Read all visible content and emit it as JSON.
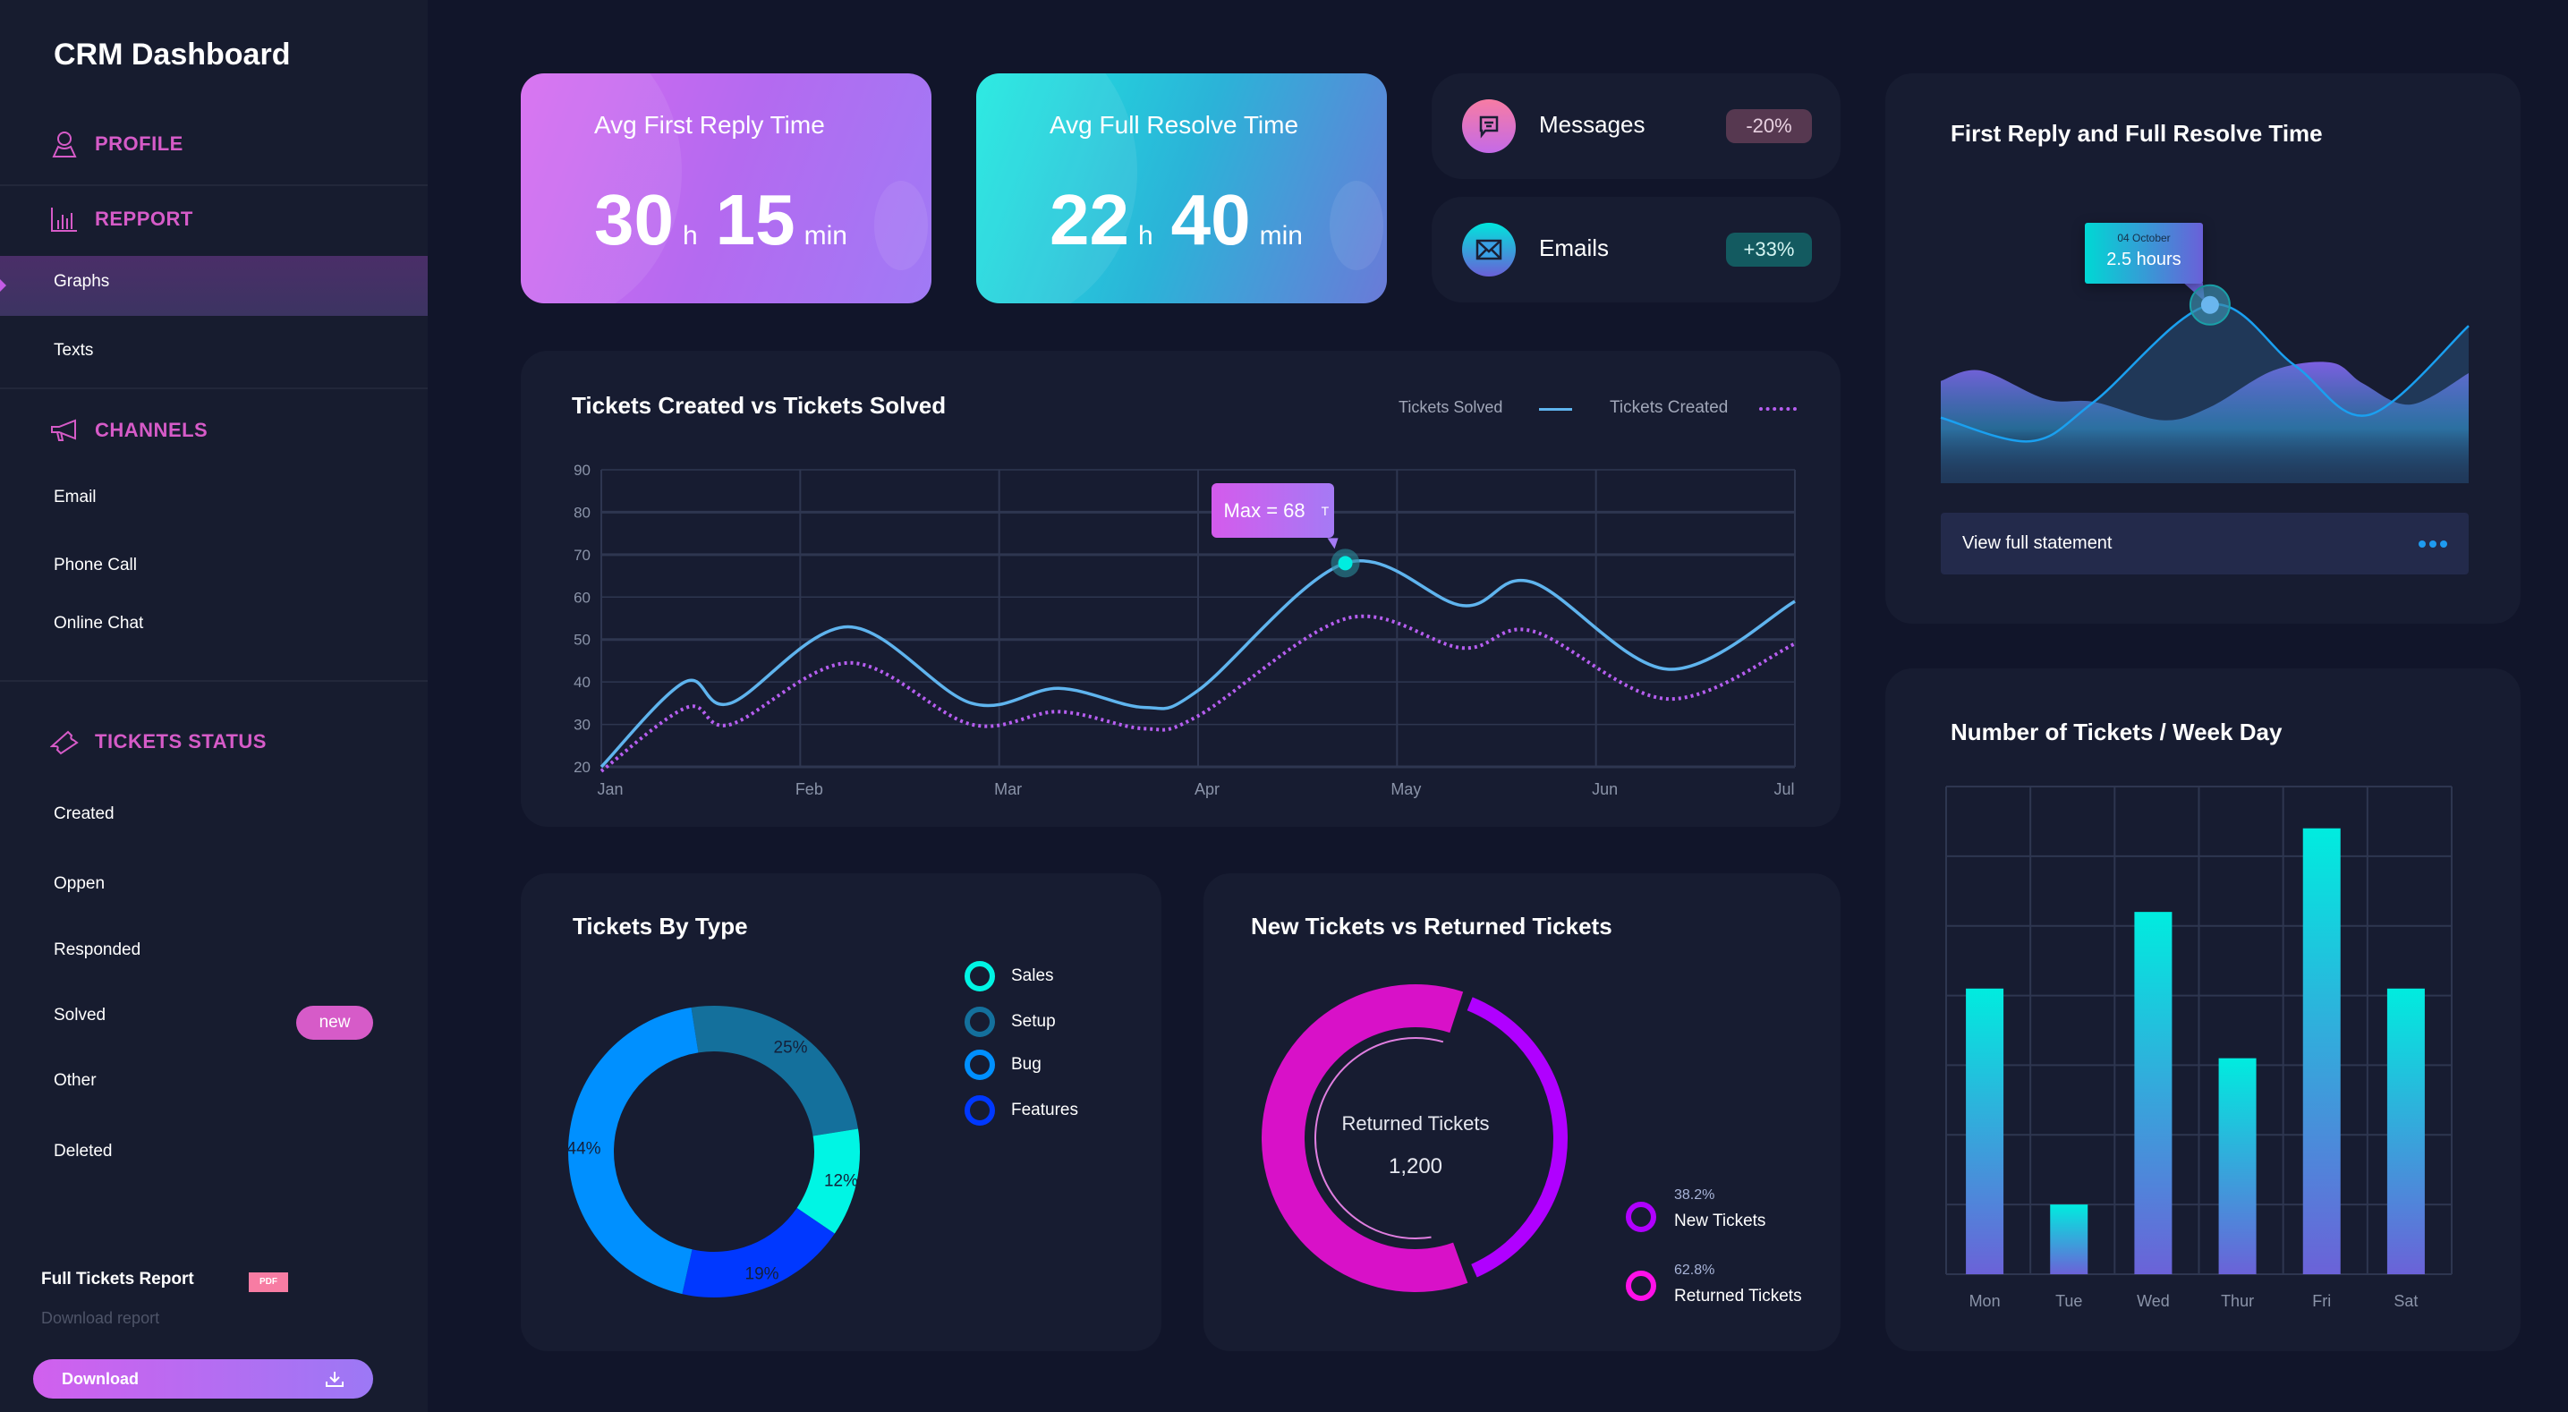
{
  "sidebar": {
    "title": "CRM Dashboard",
    "sections": {
      "profile": {
        "label": "PROFILE",
        "icon": "user-icon"
      },
      "report": {
        "label": "REPPORT",
        "icon": "bar-chart-icon",
        "items": [
          "Graphs",
          "Texts"
        ],
        "active": "Graphs"
      },
      "channels": {
        "label": "CHANNELS",
        "icon": "megaphone-icon",
        "items": [
          "Email",
          "Phone Call",
          "Online Chat"
        ]
      },
      "status": {
        "label": "TICKETS STATUS",
        "icon": "ticket-icon",
        "items": [
          "Created",
          "Oppen",
          "Responded",
          "Solved",
          "Other",
          "Deleted"
        ],
        "solved_badge": "new"
      }
    },
    "report_box": {
      "title": "Full Tickets Report",
      "badge": "PDF",
      "subtitle": "Download report",
      "button": "Download",
      "button_icon": "download-icon"
    }
  },
  "kpis": [
    {
      "title": "Avg First Reply Time",
      "hours": "30",
      "h_unit": "h",
      "minutes": "15",
      "m_unit": "min",
      "colors": [
        "#d66bf0",
        "#a07af5"
      ]
    },
    {
      "title": "Avg Full Resolve Time",
      "hours": "22",
      "h_unit": "h",
      "minutes": "40",
      "m_unit": "min",
      "colors": [
        "#1de9e0",
        "#6a7ad8"
      ]
    }
  ],
  "mini_stats": [
    {
      "label": "Messages",
      "change": "-20%",
      "icon": "message-icon"
    },
    {
      "label": "Emails",
      "change": "+33%",
      "icon": "envelope-icon"
    }
  ],
  "chart_data": [
    {
      "type": "line",
      "title": "Tickets Created vs Tickets Solved",
      "x_ticks": [
        "Jan",
        "Feb",
        "Mar",
        "Apr",
        "May",
        "Jun",
        "Jul"
      ],
      "y_ticks": [
        20,
        30,
        40,
        50,
        60,
        70,
        80,
        90
      ],
      "ylim": [
        20,
        90
      ],
      "grid": true,
      "legend": "top-right",
      "x_unit": "months from Jan",
      "series": [
        {
          "name": "Tickets Solved",
          "color": "#5fb4ee",
          "style": "solid",
          "points": [
            [
              0,
              20
            ],
            [
              0.42,
              40
            ],
            [
              0.65,
              35
            ],
            [
              1.24,
              53
            ],
            [
              1.86,
              35
            ],
            [
              2.3,
              38.5
            ],
            [
              2.73,
              34
            ],
            [
              3.0,
              38
            ],
            [
              3.74,
              68
            ],
            [
              4.33,
              58
            ],
            [
              4.68,
              63.5
            ],
            [
              5.36,
              43
            ],
            [
              6,
              59
            ]
          ]
        },
        {
          "name": "Tickets Created",
          "color": "#b65ef0",
          "style": "dotted",
          "points": [
            [
              0,
              19
            ],
            [
              0.43,
              34
            ],
            [
              0.65,
              30
            ],
            [
              1.25,
              44.5
            ],
            [
              1.86,
              30
            ],
            [
              2.3,
              33
            ],
            [
              2.73,
              29
            ],
            [
              3.0,
              32
            ],
            [
              3.75,
              55
            ],
            [
              4.33,
              48
            ],
            [
              4.68,
              52
            ],
            [
              5.36,
              36
            ],
            [
              6,
              49
            ]
          ]
        }
      ],
      "annotation": {
        "text": "Max = 68",
        "suffix": "T",
        "x": 3.74,
        "y": 68
      }
    },
    {
      "type": "pie",
      "title": "Tickets By Type",
      "donut": true,
      "slices": [
        {
          "name": "Setup",
          "value": 25,
          "label": "25%",
          "color": "#14709c"
        },
        {
          "name": "Sales",
          "value": 12,
          "label": "12%",
          "color": "#00f5e4"
        },
        {
          "name": "Features",
          "value": 19,
          "label": "19%",
          "color": "#0038ff"
        },
        {
          "name": "Bug",
          "value": 44,
          "label": "44%",
          "color": "#0090ff"
        }
      ],
      "legend_order": [
        "Sales",
        "Setup",
        "Bug",
        "Features"
      ],
      "legend": "right"
    },
    {
      "type": "pie",
      "title": "New Tickets vs Returned Tickets",
      "donut": true,
      "center_label": "Returned Tickets",
      "center_value": "1,200",
      "slices": [
        {
          "name": "New Tickets",
          "value": 38.2,
          "label": "38.2%",
          "color": "#b000ff"
        },
        {
          "name": "Returned Tickets",
          "value": 62.8,
          "label": "62.8%",
          "color": "#d811c8"
        }
      ],
      "legend": "bottom-right"
    },
    {
      "type": "area",
      "title": "First Reply and Full Resolve Time",
      "tooltip": {
        "date": "04 October",
        "value": "2.5 hours"
      },
      "series": [
        {
          "color": "#1aa0f0",
          "points": [
            [
              0,
              25
            ],
            [
              0.17,
              16
            ],
            [
              0.29,
              31
            ],
            [
              0.51,
              68
            ],
            [
              0.67,
              45
            ],
            [
              0.81,
              26
            ],
            [
              1,
              60
            ]
          ]
        },
        {
          "color": "#7b5fe0",
          "points": [
            [
              0,
              39
            ],
            [
              0.075,
              43
            ],
            [
              0.2,
              32
            ],
            [
              0.29,
              31
            ],
            [
              0.42,
              24
            ],
            [
              0.51,
              29
            ],
            [
              0.63,
              43
            ],
            [
              0.74,
              46
            ],
            [
              0.8,
              38
            ],
            [
              0.89,
              30
            ],
            [
              1,
              42
            ]
          ]
        }
      ],
      "footer": "View full statement"
    },
    {
      "type": "bar",
      "title": "Number of Tickets / Week Day",
      "categories": [
        "Mon",
        "Tue",
        "Wed",
        "Thur",
        "Fri",
        "Sat"
      ],
      "values": [
        4.1,
        1.0,
        5.2,
        3.1,
        6.4,
        4.1
      ],
      "ylim": [
        0,
        7
      ],
      "grid": true,
      "colors": [
        "#00ecdf",
        "#6b62d8"
      ]
    }
  ]
}
